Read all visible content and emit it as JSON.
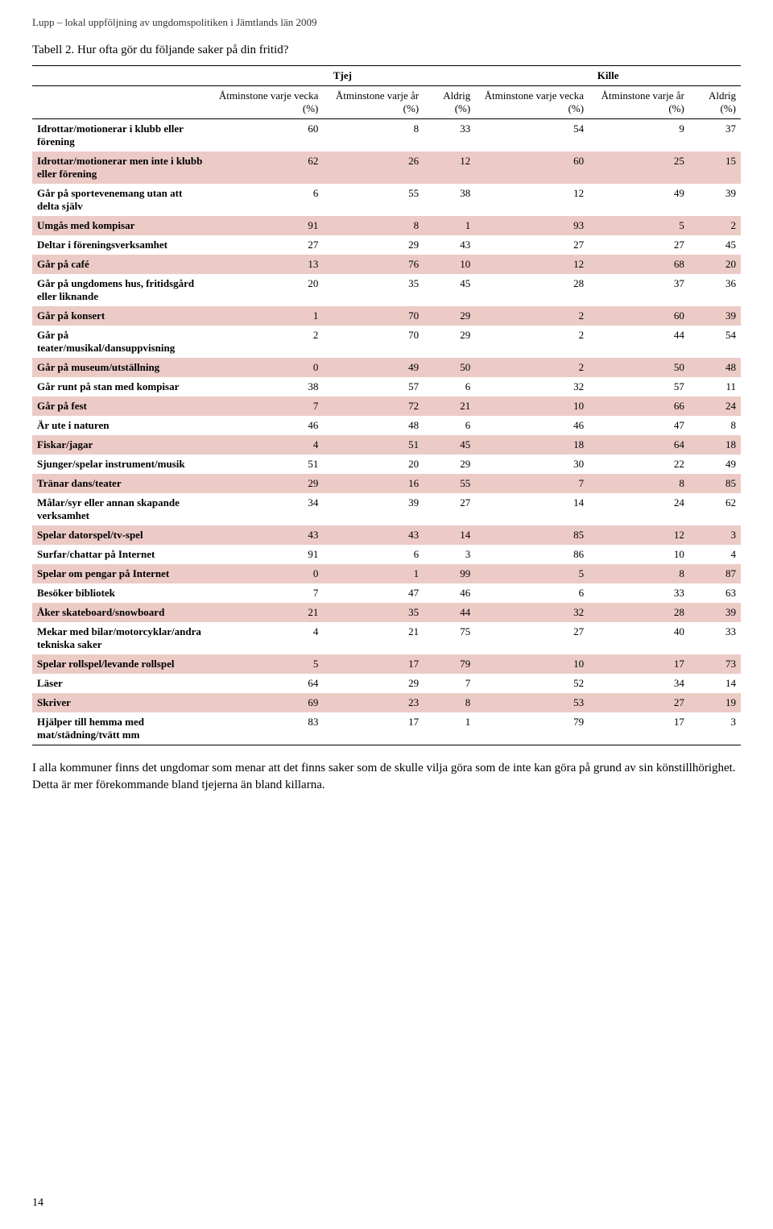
{
  "header": {
    "running": "Lupp – lokal uppföljning av ungdomspolitiken i Jämtlands län 2009",
    "caption": "Tabell 2. Hur ofta gör du följande saker på din fritid?"
  },
  "colors": {
    "shaded_row": "#eccbc7",
    "background": "#ffffff",
    "text": "#000000"
  },
  "table": {
    "group_headers": {
      "blank": "",
      "tjej": "Tjej",
      "kille": "Kille"
    },
    "columns": [
      {
        "key": "label",
        "label": ""
      },
      {
        "key": "t_vecka",
        "label": "Åtminstone varje vecka (%)"
      },
      {
        "key": "t_ar",
        "label": "Åtminstone varje år (%)"
      },
      {
        "key": "t_aldrig",
        "label": "Aldrig (%)"
      },
      {
        "key": "k_vecka",
        "label": "Åtminstone varje vecka (%)"
      },
      {
        "key": "k_ar",
        "label": "Åtminstone varje år (%)"
      },
      {
        "key": "k_aldrig",
        "label": "Aldrig (%)"
      }
    ],
    "rows": [
      {
        "label": "Idrottar/motionerar i klubb eller förening",
        "t_vecka": 60,
        "t_ar": 8,
        "t_aldrig": 33,
        "k_vecka": 54,
        "k_ar": 9,
        "k_aldrig": 37,
        "shaded": false
      },
      {
        "label": "Idrottar/motionerar men inte i klubb eller förening",
        "t_vecka": 62,
        "t_ar": 26,
        "t_aldrig": 12,
        "k_vecka": 60,
        "k_ar": 25,
        "k_aldrig": 15,
        "shaded": true
      },
      {
        "label": "Går på sportevenemang utan att delta själv",
        "t_vecka": 6,
        "t_ar": 55,
        "t_aldrig": 38,
        "k_vecka": 12,
        "k_ar": 49,
        "k_aldrig": 39,
        "shaded": false
      },
      {
        "label": "Umgås med kompisar",
        "t_vecka": 91,
        "t_ar": 8,
        "t_aldrig": 1,
        "k_vecka": 93,
        "k_ar": 5,
        "k_aldrig": 2,
        "shaded": true
      },
      {
        "label": "Deltar i föreningsverksamhet",
        "t_vecka": 27,
        "t_ar": 29,
        "t_aldrig": 43,
        "k_vecka": 27,
        "k_ar": 27,
        "k_aldrig": 45,
        "shaded": false
      },
      {
        "label": "Går på café",
        "t_vecka": 13,
        "t_ar": 76,
        "t_aldrig": 10,
        "k_vecka": 12,
        "k_ar": 68,
        "k_aldrig": 20,
        "shaded": true
      },
      {
        "label": "Går på ungdomens hus, fritidsgård eller liknande",
        "t_vecka": 20,
        "t_ar": 35,
        "t_aldrig": 45,
        "k_vecka": 28,
        "k_ar": 37,
        "k_aldrig": 36,
        "shaded": false
      },
      {
        "label": "Går på konsert",
        "t_vecka": 1,
        "t_ar": 70,
        "t_aldrig": 29,
        "k_vecka": 2,
        "k_ar": 60,
        "k_aldrig": 39,
        "shaded": true
      },
      {
        "label": "Går på teater/musikal/dansuppvisning",
        "t_vecka": 2,
        "t_ar": 70,
        "t_aldrig": 29,
        "k_vecka": 2,
        "k_ar": 44,
        "k_aldrig": 54,
        "shaded": false
      },
      {
        "label": "Går på museum/utställning",
        "t_vecka": 0,
        "t_ar": 49,
        "t_aldrig": 50,
        "k_vecka": 2,
        "k_ar": 50,
        "k_aldrig": 48,
        "shaded": true
      },
      {
        "label": "Går runt på stan med kompisar",
        "t_vecka": 38,
        "t_ar": 57,
        "t_aldrig": 6,
        "k_vecka": 32,
        "k_ar": 57,
        "k_aldrig": 11,
        "shaded": false
      },
      {
        "label": "Går på fest",
        "t_vecka": 7,
        "t_ar": 72,
        "t_aldrig": 21,
        "k_vecka": 10,
        "k_ar": 66,
        "k_aldrig": 24,
        "shaded": true
      },
      {
        "label": "Är ute i naturen",
        "t_vecka": 46,
        "t_ar": 48,
        "t_aldrig": 6,
        "k_vecka": 46,
        "k_ar": 47,
        "k_aldrig": 8,
        "shaded": false
      },
      {
        "label": "Fiskar/jagar",
        "t_vecka": 4,
        "t_ar": 51,
        "t_aldrig": 45,
        "k_vecka": 18,
        "k_ar": 64,
        "k_aldrig": 18,
        "shaded": true
      },
      {
        "label": "Sjunger/spelar instrument/musik",
        "t_vecka": 51,
        "t_ar": 20,
        "t_aldrig": 29,
        "k_vecka": 30,
        "k_ar": 22,
        "k_aldrig": 49,
        "shaded": false
      },
      {
        "label": "Tränar dans/teater",
        "t_vecka": 29,
        "t_ar": 16,
        "t_aldrig": 55,
        "k_vecka": 7,
        "k_ar": 8,
        "k_aldrig": 85,
        "shaded": true
      },
      {
        "label": "Målar/syr eller annan skapande verksamhet",
        "t_vecka": 34,
        "t_ar": 39,
        "t_aldrig": 27,
        "k_vecka": 14,
        "k_ar": 24,
        "k_aldrig": 62,
        "shaded": false
      },
      {
        "label": "Spelar datorspel/tv-spel",
        "t_vecka": 43,
        "t_ar": 43,
        "t_aldrig": 14,
        "k_vecka": 85,
        "k_ar": 12,
        "k_aldrig": 3,
        "shaded": true
      },
      {
        "label": "Surfar/chattar på Internet",
        "t_vecka": 91,
        "t_ar": 6,
        "t_aldrig": 3,
        "k_vecka": 86,
        "k_ar": 10,
        "k_aldrig": 4,
        "shaded": false
      },
      {
        "label": "Spelar om pengar på Internet",
        "t_vecka": 0,
        "t_ar": 1,
        "t_aldrig": 99,
        "k_vecka": 5,
        "k_ar": 8,
        "k_aldrig": 87,
        "shaded": true
      },
      {
        "label": "Besöker bibliotek",
        "t_vecka": 7,
        "t_ar": 47,
        "t_aldrig": 46,
        "k_vecka": 6,
        "k_ar": 33,
        "k_aldrig": 63,
        "shaded": false
      },
      {
        "label": "Åker skateboard/snowboard",
        "t_vecka": 21,
        "t_ar": 35,
        "t_aldrig": 44,
        "k_vecka": 32,
        "k_ar": 28,
        "k_aldrig": 39,
        "shaded": true
      },
      {
        "label": "Mekar med bilar/motorcyklar/andra tekniska saker",
        "t_vecka": 4,
        "t_ar": 21,
        "t_aldrig": 75,
        "k_vecka": 27,
        "k_ar": 40,
        "k_aldrig": 33,
        "shaded": false
      },
      {
        "label": "Spelar rollspel/levande rollspel",
        "t_vecka": 5,
        "t_ar": 17,
        "t_aldrig": 79,
        "k_vecka": 10,
        "k_ar": 17,
        "k_aldrig": 73,
        "shaded": true
      },
      {
        "label": "Läser",
        "t_vecka": 64,
        "t_ar": 29,
        "t_aldrig": 7,
        "k_vecka": 52,
        "k_ar": 34,
        "k_aldrig": 14,
        "shaded": false
      },
      {
        "label": "Skriver",
        "t_vecka": 69,
        "t_ar": 23,
        "t_aldrig": 8,
        "k_vecka": 53,
        "k_ar": 27,
        "k_aldrig": 19,
        "shaded": true
      },
      {
        "label": "Hjälper till hemma med mat/städning/tvätt mm",
        "t_vecka": 83,
        "t_ar": 17,
        "t_aldrig": 1,
        "k_vecka": 79,
        "k_ar": 17,
        "k_aldrig": 3,
        "shaded": false
      }
    ]
  },
  "body_paragraph": "I alla kommuner finns det ungdomar som menar att det finns saker som de skulle vilja göra som de inte kan göra på grund av sin könstillhörighet. Detta är mer förekommande bland tjejerna än bland killarna.",
  "page_number": "14"
}
